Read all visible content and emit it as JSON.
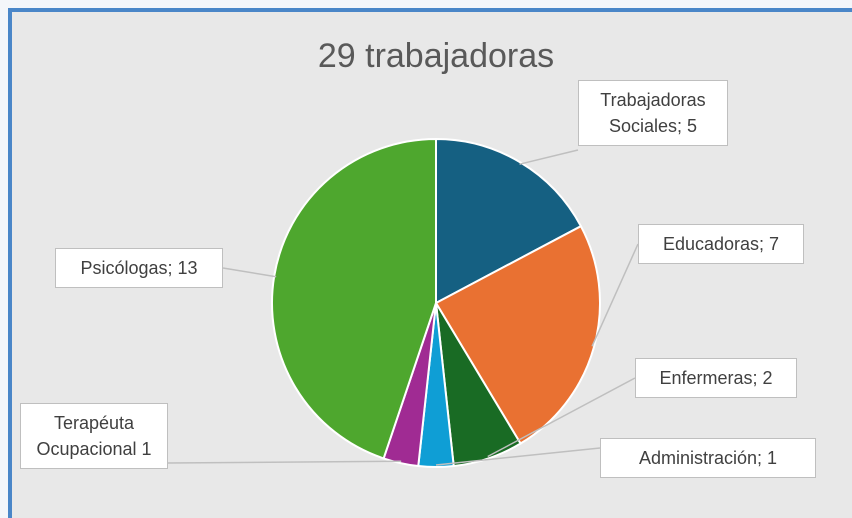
{
  "chart_data": {
    "type": "pie",
    "title": "29 trabajadoras",
    "labels": [
      "Trabajadoras Sociales; 5",
      "Educadoras; 7",
      "Enfermeras; 2",
      "Administración; 1",
      "Terapéuta Ocupacional 1",
      "Psicólogas; 13"
    ],
    "values": [
      5,
      7,
      2,
      1,
      1,
      13
    ],
    "colors": [
      "#156082",
      "#e97132",
      "#196b24",
      "#0f9ed5",
      "#a02b93",
      "#4ea72e"
    ]
  }
}
